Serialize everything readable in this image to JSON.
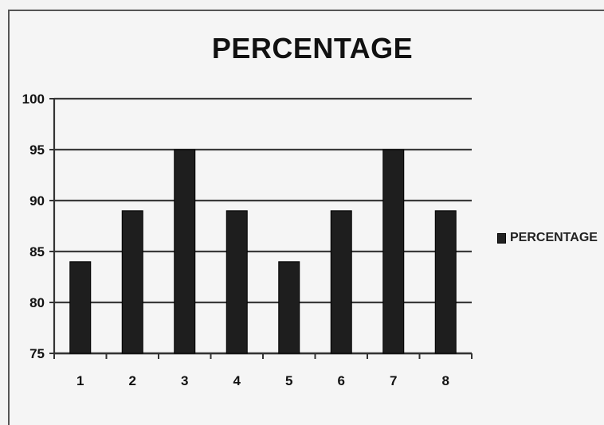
{
  "chart_data": {
    "type": "bar",
    "title": "PERCENTAGE",
    "categories": [
      "1",
      "2",
      "3",
      "4",
      "5",
      "6",
      "7",
      "8"
    ],
    "series": [
      {
        "name": "PERCENTAGE",
        "values": [
          84,
          89,
          95,
          89,
          84,
          89,
          95,
          89
        ]
      }
    ],
    "ylim": [
      75,
      100
    ],
    "yticks": [
      "75",
      "80",
      "85",
      "90",
      "95",
      "100"
    ],
    "grid": true,
    "legend_position": "right",
    "bar_color": "#1e1e1e"
  }
}
